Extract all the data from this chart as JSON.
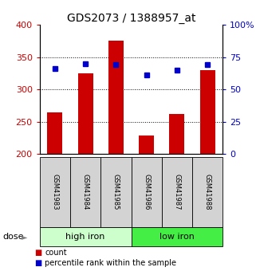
{
  "title": "GDS2073 / 1388957_at",
  "samples": [
    "GSM41983",
    "GSM41984",
    "GSM41985",
    "GSM41986",
    "GSM41987",
    "GSM41988"
  ],
  "counts": [
    265,
    325,
    376,
    228,
    262,
    330
  ],
  "percentiles": [
    66,
    70,
    69,
    61,
    65,
    69
  ],
  "bar_color": "#cc0000",
  "dot_color": "#0000cc",
  "ylim_left": [
    200,
    400
  ],
  "ylim_right": [
    0,
    100
  ],
  "yticks_left": [
    200,
    250,
    300,
    350,
    400
  ],
  "yticks_right": [
    0,
    25,
    50,
    75,
    100
  ],
  "ytick_labels_right": [
    "0",
    "25",
    "50",
    "75",
    "100%"
  ],
  "gridline_values": [
    250,
    300,
    350
  ],
  "dose_label": "dose",
  "legend_count": "count",
  "legend_percentile": "percentile rank within the sample",
  "title_fontsize": 10,
  "axis_color_left": "#cc0000",
  "axis_color_right": "#0000cc",
  "label_box_color": "#d3d3d3",
  "high_iron_color": "#ccffcc",
  "low_iron_color": "#44ee44",
  "bar_width": 0.5
}
